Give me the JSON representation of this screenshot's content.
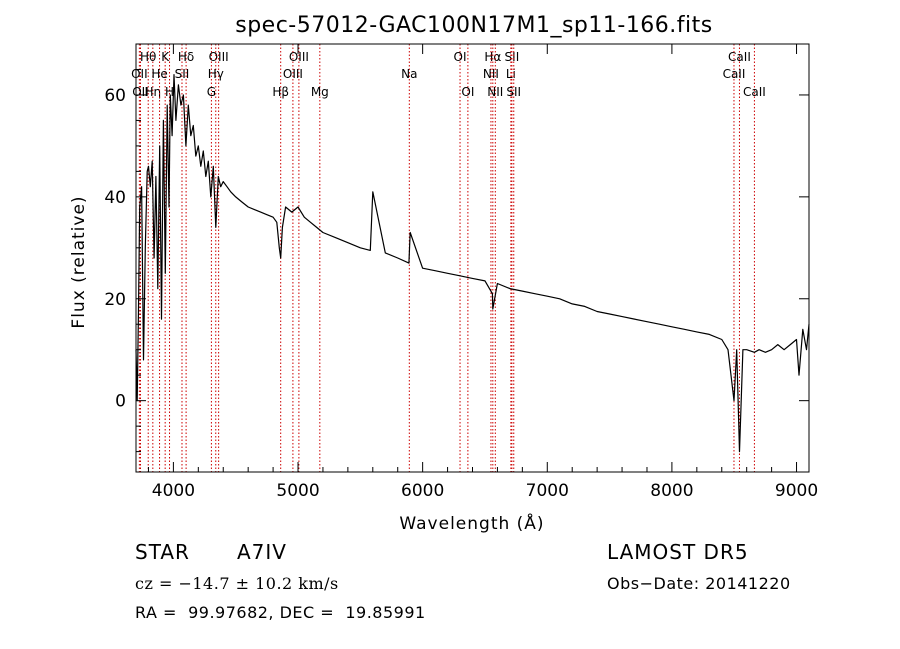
{
  "chart_data": {
    "type": "line",
    "title": "spec-57012-GAC100N17M1_sp11-166.fits",
    "xlabel": "Wavelength (Å)",
    "ylabel": "Flux (relative)",
    "xlim": [
      3700,
      9100
    ],
    "ylim": [
      -14,
      70
    ],
    "xticks": [
      4000,
      5000,
      6000,
      7000,
      8000,
      9000
    ],
    "yticks": [
      0,
      20,
      40,
      60
    ],
    "series": [
      {
        "x": [
          3700,
          3710,
          3720,
          3730,
          3745,
          3760,
          3775,
          3790,
          3800,
          3815,
          3830,
          3845,
          3860,
          3875,
          3890,
          3905,
          3920,
          3935,
          3950,
          3965,
          3975,
          3990,
          4005,
          4020,
          4040,
          4060,
          4080,
          4100,
          4120,
          4140,
          4160,
          4180,
          4200,
          4220,
          4240,
          4260,
          4280,
          4300,
          4320,
          4340,
          4360,
          4380,
          4400,
          4430,
          4460,
          4500,
          4550,
          4600,
          4650,
          4700,
          4750,
          4800,
          4830,
          4850,
          4861,
          4875,
          4900,
          4950,
          5000,
          5050,
          5100,
          5150,
          5200,
          5300,
          5400,
          5500,
          5580,
          5600,
          5700,
          5800,
          5890,
          5900,
          6000,
          6100,
          6200,
          6300,
          6400,
          6500,
          6560,
          6563,
          6600,
          6700,
          6800,
          6900,
          7000,
          7100,
          7200,
          7300,
          7400,
          7500,
          7600,
          7700,
          7800,
          7900,
          8000,
          8100,
          8200,
          8300,
          8400,
          8450,
          8498,
          8520,
          8542,
          8570,
          8600,
          8662,
          8700,
          8750,
          8800,
          8850,
          8900,
          8950,
          9000,
          9020,
          9050,
          9080,
          9100
        ],
        "y": [
          10,
          0,
          18,
          38,
          42,
          8,
          30,
          45,
          46,
          42,
          47,
          28,
          44,
          22,
          50,
          16,
          55,
          25,
          58,
          38,
          60,
          52,
          64,
          55,
          62,
          58,
          60,
          50,
          58,
          52,
          54,
          48,
          50,
          46,
          49,
          44,
          47,
          40,
          46,
          34,
          44,
          42,
          43,
          42,
          41,
          40,
          39,
          38,
          37.5,
          37,
          36.5,
          36,
          35,
          30,
          28,
          34,
          38,
          37,
          38,
          36,
          35,
          34,
          33,
          32,
          31,
          30,
          29.5,
          41,
          29,
          28,
          27,
          33,
          26,
          25.5,
          25,
          24.5,
          24,
          23.5,
          21,
          18,
          23,
          22,
          21.5,
          21,
          20.5,
          20,
          19,
          18.5,
          17.5,
          17,
          16.5,
          16,
          15.5,
          15,
          14.5,
          14,
          13.5,
          13,
          12,
          10,
          0,
          10,
          -10,
          10,
          10,
          9.5,
          10,
          9.5,
          10,
          11,
          10,
          11,
          12,
          5,
          14,
          10,
          15
        ]
      }
    ],
    "lines": [
      {
        "label": "Hθ",
        "x": 3798,
        "row": 1
      },
      {
        "label": "OII",
        "x": 3727,
        "row": 2
      },
      {
        "label": "OII",
        "x": 3736,
        "row": 3
      },
      {
        "label": "Hη",
        "x": 3835,
        "row": 3
      },
      {
        "label": "K",
        "x": 3934,
        "row": 1
      },
      {
        "label": "He",
        "x": 3889,
        "row": 2
      },
      {
        "label": "H",
        "x": 3969,
        "row": 3
      },
      {
        "label": "SII",
        "x": 4069,
        "row": 2
      },
      {
        "label": "Hδ",
        "x": 4102,
        "row": 1
      },
      {
        "label": "OIII",
        "x": 4363,
        "row": 1
      },
      {
        "label": "Hγ",
        "x": 4340,
        "row": 2
      },
      {
        "label": "G",
        "x": 4305,
        "row": 3
      },
      {
        "label": "Hβ",
        "x": 4861,
        "row": 3
      },
      {
        "label": "OIII",
        "x": 5007,
        "row": 1
      },
      {
        "label": "OIII",
        "x": 4959,
        "row": 2
      },
      {
        "label": "Mg",
        "x": 5175,
        "row": 3
      },
      {
        "label": "Na",
        "x": 5893,
        "row": 2
      },
      {
        "label": "OI",
        "x": 6300,
        "row": 1
      },
      {
        "label": "OI",
        "x": 6363,
        "row": 3
      },
      {
        "label": "Hα",
        "x": 6563,
        "row": 1
      },
      {
        "label": "NII",
        "x": 6548,
        "row": 2
      },
      {
        "label": "NII",
        "x": 6583,
        "row": 3
      },
      {
        "label": "SII",
        "x": 6716,
        "row": 1
      },
      {
        "label": "Li",
        "x": 6708,
        "row": 2
      },
      {
        "label": "SII",
        "x": 6731,
        "row": 3
      },
      {
        "label": "CaII",
        "x": 8542,
        "row": 1
      },
      {
        "label": "CaII",
        "x": 8498,
        "row": 2
      },
      {
        "label": "CaII",
        "x": 8662,
        "row": 3
      }
    ]
  },
  "info": {
    "class_label": "STAR",
    "subclass": "A7IV",
    "survey": "LAMOST DR5",
    "cz_text": "cz = −14.7 ± 10.2 km/s",
    "obs_date": "Obs−Date: 20141220",
    "coords": "RA =  99.97682, DEC =  19.85991"
  },
  "colors": {
    "spectrum": "#000000",
    "line_marker": "#cc0000"
  }
}
